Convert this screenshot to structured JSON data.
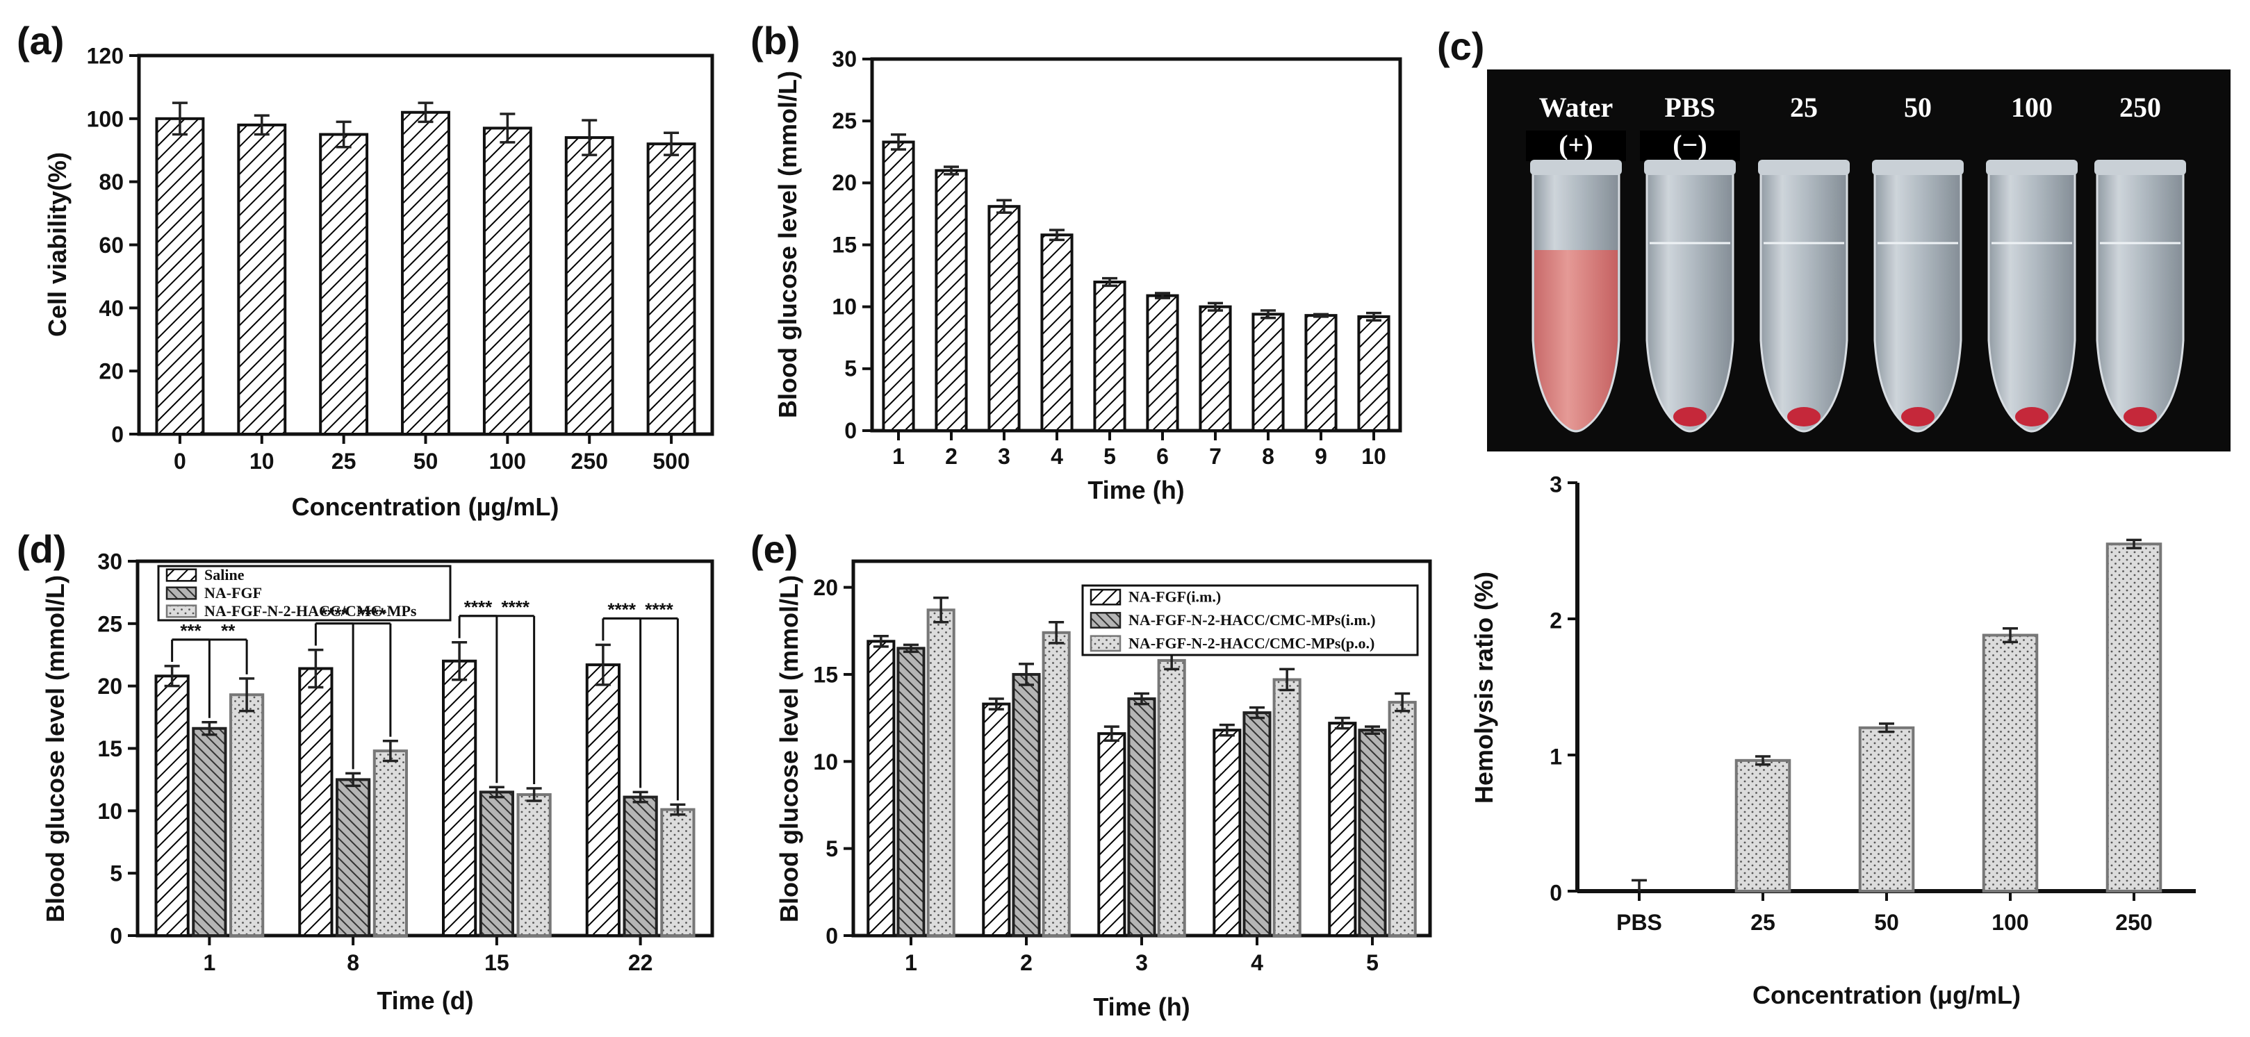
{
  "panel_labels": {
    "a": "(a)",
    "b": "(b)",
    "c": "(c)",
    "d": "(d)",
    "e": "(e)"
  },
  "photo": {
    "labels": [
      "Water",
      "PBS",
      "25",
      "50",
      "100",
      "250"
    ],
    "sublabels": [
      "(+)",
      "(−)"
    ]
  },
  "chart_data": [
    {
      "id": "a",
      "type": "bar",
      "title": "",
      "xlabel": "Concentration (µg/mL)",
      "ylabel": "Cell viability(%)",
      "ylim": [
        0,
        120
      ],
      "yticks": [
        0,
        20,
        40,
        60,
        80,
        100,
        120
      ],
      "categories": [
        "0",
        "10",
        "25",
        "50",
        "100",
        "250",
        "500"
      ],
      "series": [
        {
          "name": "",
          "values": [
            100,
            98,
            95,
            102,
            97,
            94,
            92
          ],
          "errors": [
            5,
            3,
            4,
            3,
            4.5,
            5.5,
            3.5
          ],
          "fill": "hatch",
          "color": "#000000"
        }
      ]
    },
    {
      "id": "b",
      "type": "bar",
      "title": "",
      "xlabel": "Time (h)",
      "ylabel": "Blood glucose level (mmol/L)",
      "ylim": [
        0,
        30
      ],
      "yticks": [
        0,
        5,
        10,
        15,
        20,
        25,
        30
      ],
      "categories": [
        "1",
        "2",
        "3",
        "4",
        "5",
        "6",
        "7",
        "8",
        "9",
        "10"
      ],
      "series": [
        {
          "name": "",
          "values": [
            23.3,
            21.0,
            18.1,
            15.8,
            12.0,
            10.9,
            10.0,
            9.4,
            9.3,
            9.2
          ],
          "errors": [
            0.6,
            0.3,
            0.5,
            0.4,
            0.3,
            0.2,
            0.3,
            0.3,
            0.1,
            0.3
          ],
          "fill": "hatch",
          "color": "#000000"
        }
      ]
    },
    {
      "id": "c",
      "type": "bar",
      "title": "",
      "xlabel": "Concentration (μg/mL)",
      "ylabel": "Hemolysis ratio (%)",
      "ylim": [
        0,
        3
      ],
      "yticks": [
        0,
        1,
        2,
        3
      ],
      "categories": [
        "PBS",
        "25",
        "50",
        "100",
        "250"
      ],
      "series": [
        {
          "name": "",
          "values": [
            0,
            0.96,
            1.2,
            1.88,
            2.55
          ],
          "errors": [
            0.08,
            0.03,
            0.03,
            0.05,
            0.03
          ],
          "fill": "dots",
          "color": "#666666"
        }
      ]
    },
    {
      "id": "d",
      "type": "bar",
      "title": "",
      "xlabel": "Time (d)",
      "ylabel": "Blood glucose level (mmol/L)",
      "ylim": [
        0,
        30
      ],
      "yticks": [
        0,
        5,
        10,
        15,
        20,
        25,
        30
      ],
      "categories": [
        "1",
        "8",
        "15",
        "22"
      ],
      "series": [
        {
          "name": "Saline",
          "values": [
            20.8,
            21.4,
            22.0,
            21.7
          ],
          "errors": [
            0.8,
            1.5,
            1.5,
            1.6
          ],
          "fill": "hatch",
          "color": "#000000"
        },
        {
          "name": "NA-FGF",
          "values": [
            16.6,
            12.5,
            11.5,
            11.1
          ],
          "errors": [
            0.5,
            0.5,
            0.4,
            0.4
          ],
          "fill": "darkhatch",
          "color": "#333333"
        },
        {
          "name": "NA-FGF-N-2-HACC/CMC-MPs",
          "values": [
            19.3,
            14.8,
            11.3,
            10.1
          ],
          "errors": [
            1.3,
            0.8,
            0.5,
            0.4
          ],
          "fill": "dots",
          "color": "#777777"
        }
      ],
      "significance": [
        {
          "group": 0,
          "labels": [
            "***",
            "**"
          ]
        },
        {
          "group": 1,
          "labels": [
            "****",
            "****"
          ]
        },
        {
          "group": 2,
          "labels": [
            "****",
            "****"
          ]
        },
        {
          "group": 3,
          "labels": [
            "****",
            "****"
          ]
        }
      ]
    },
    {
      "id": "e",
      "type": "bar",
      "title": "",
      "xlabel": "Time (h)",
      "ylabel": "Blood glucose level (mmol/L)",
      "ylim": [
        0,
        21.5
      ],
      "yticks": [
        0,
        5,
        10,
        15,
        20
      ],
      "categories": [
        "1",
        "2",
        "3",
        "4",
        "5"
      ],
      "series": [
        {
          "name": "NA-FGF(i.m.)",
          "values": [
            16.9,
            13.3,
            11.6,
            11.8,
            12.2
          ],
          "errors": [
            0.3,
            0.3,
            0.4,
            0.3,
            0.3
          ],
          "fill": "hatch",
          "color": "#000000"
        },
        {
          "name": "NA-FGF-N-2-HACC/CMC-MPs(i.m.)",
          "values": [
            16.5,
            15.0,
            13.6,
            12.8,
            11.8
          ],
          "errors": [
            0.2,
            0.6,
            0.3,
            0.3,
            0.2
          ],
          "fill": "darkhatch",
          "color": "#333333"
        },
        {
          "name": "NA-FGF-N-2-HACC/CMC-MPs(p.o.)",
          "values": [
            18.7,
            17.4,
            15.8,
            14.7,
            13.4
          ],
          "errors": [
            0.7,
            0.6,
            0.5,
            0.6,
            0.5
          ],
          "fill": "dots",
          "color": "#777777"
        }
      ]
    }
  ]
}
